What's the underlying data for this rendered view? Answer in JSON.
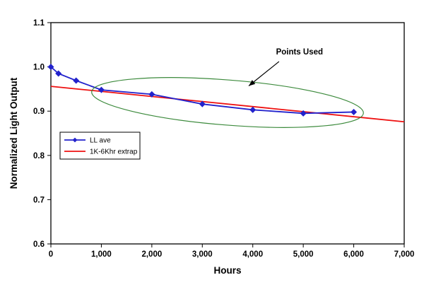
{
  "chart_data": {
    "type": "line",
    "title": "",
    "xlabel": "Hours",
    "ylabel": "Normalized Light Output",
    "xlim": [
      0,
      7000
    ],
    "ylim": [
      0.6,
      1.1
    ],
    "grid": false,
    "x_ticks": [
      0,
      1000,
      2000,
      3000,
      4000,
      5000,
      6000,
      7000
    ],
    "x_tick_labels": [
      "0",
      "1,000",
      "2,000",
      "3,000",
      "4,000",
      "5,000",
      "6,000",
      "7,000"
    ],
    "y_ticks": [
      0.6,
      0.7,
      0.8,
      0.9,
      1.0,
      1.1
    ],
    "y_tick_labels": [
      "0.6",
      "0.7",
      "0.8",
      "0.9",
      "1.0",
      "1.1"
    ],
    "legend_position": "inside-left",
    "series": [
      {
        "name": "LL ave",
        "color": "#2222cc",
        "marker": "diamond",
        "x": [
          0,
          150,
          500,
          1000,
          2000,
          3000,
          4000,
          5000,
          6000
        ],
        "y": [
          1.0,
          0.985,
          0.969,
          0.948,
          0.938,
          0.916,
          0.903,
          0.895,
          0.898
        ]
      },
      {
        "name": "1K-6Khr extrap",
        "color": "#ee1111",
        "marker": "none",
        "x": [
          0,
          7000
        ],
        "y": [
          0.956,
          0.876
        ]
      }
    ],
    "annotation": {
      "label": "Points Used",
      "label_x": 4460,
      "label_y": 1.028,
      "arrow_tail_x": 4520,
      "arrow_tail_y": 1.012,
      "arrow_tip_x": 3920,
      "arrow_tip_y": 0.957,
      "ellipse_cx": 3500,
      "ellipse_cy": 0.9195,
      "ellipse_rx_hours": 2700,
      "ellipse_ry_output": 0.051,
      "ellipse_rotation_deg": 4.5,
      "ellipse_color": "#3c8a3c"
    }
  }
}
